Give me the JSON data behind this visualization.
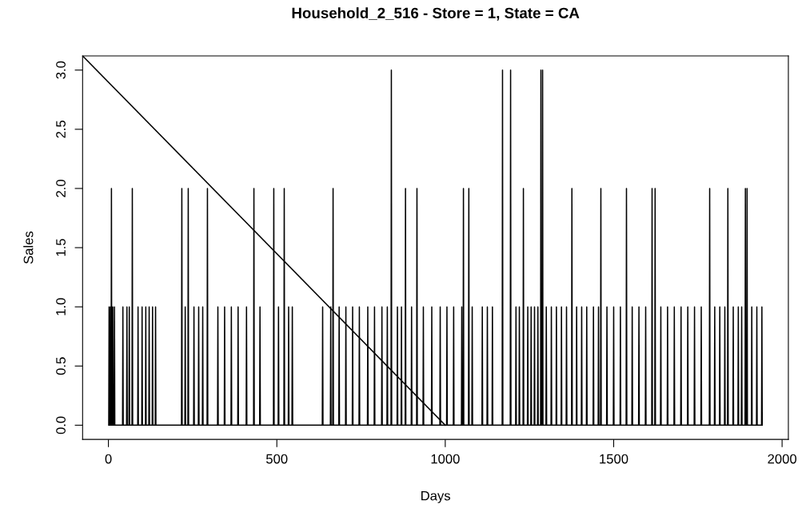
{
  "chart_data": {
    "type": "line",
    "title": "Household_2_516 - Store = 1, State = CA",
    "xlabel": "Days",
    "ylabel": "Sales",
    "xlim": [
      -76.6,
      2018.6
    ],
    "ylim": [
      -0.12,
      3.12
    ],
    "xticks": [
      0,
      500,
      1000,
      1500,
      2000
    ],
    "yticks": [
      {
        "value": 0,
        "label": "0.0"
      },
      {
        "value": 0.5,
        "label": "0.5"
      },
      {
        "value": 1,
        "label": "1.0"
      },
      {
        "value": 1.5,
        "label": "1.5"
      },
      {
        "value": 2,
        "label": "2.0"
      },
      {
        "value": 2.5,
        "label": "2.5"
      },
      {
        "value": 3,
        "label": "3.0"
      }
    ],
    "grid": false,
    "legend": false,
    "series": [
      {
        "color": "#000000",
        "x": [
          1,
          2,
          3,
          5,
          6,
          7,
          8,
          9,
          10,
          12,
          13,
          14,
          17,
          18,
          19,
          42,
          43,
          44,
          54,
          55,
          56,
          61,
          62,
          63,
          70,
          71,
          72,
          87,
          88,
          89,
          99,
          100,
          101,
          110,
          111,
          112,
          120,
          121,
          122,
          130,
          131,
          132,
          139,
          140,
          141,
          217,
          218,
          219,
          227,
          228,
          229,
          236,
          237,
          238,
          253,
          254,
          255,
          267,
          268,
          269,
          279,
          280,
          281,
          293,
          294,
          295,
          324,
          325,
          326,
          344,
          345,
          346,
          364,
          365,
          366,
          384,
          385,
          386,
          409,
          410,
          411,
          431,
          432,
          433,
          449,
          450,
          451,
          490,
          491,
          492,
          504,
          505,
          506,
          521,
          522,
          523,
          534,
          535,
          536,
          545,
          546,
          547,
          635,
          636,
          637,
          659,
          660,
          661,
          666,
          667,
          668,
          684,
          685,
          686,
          704,
          705,
          706,
          724,
          725,
          726,
          744,
          745,
          746,
          769,
          770,
          771,
          789,
          790,
          791,
          811,
          812,
          813,
          827,
          828,
          829,
          839,
          840,
          841,
          857,
          858,
          859,
          869,
          870,
          871,
          881,
          882,
          883,
          899,
          900,
          901,
          915,
          916,
          917,
          934,
          935,
          936,
          959,
          960,
          961,
          984,
          985,
          986,
          1004,
          1005,
          1006,
          1024,
          1025,
          1026,
          1048,
          1049,
          1050,
          1053,
          1054,
          1055,
          1069,
          1070,
          1071,
          1079,
          1080,
          1081,
          1109,
          1110,
          1111,
          1124,
          1125,
          1126,
          1139,
          1140,
          1141,
          1169,
          1170,
          1171,
          1193,
          1194,
          1195,
          1209,
          1210,
          1211,
          1219,
          1220,
          1221,
          1231,
          1232,
          1233,
          1244,
          1245,
          1246,
          1254,
          1255,
          1256,
          1264,
          1265,
          1266,
          1274,
          1275,
          1276,
          1283,
          1284,
          1285,
          1288,
          1289,
          1290,
          1299,
          1300,
          1301,
          1314,
          1315,
          1316,
          1329,
          1330,
          1331,
          1344,
          1345,
          1346,
          1359,
          1360,
          1361,
          1375,
          1376,
          1377,
          1389,
          1390,
          1391,
          1404,
          1405,
          1406,
          1419,
          1420,
          1421,
          1439,
          1440,
          1441,
          1454,
          1455,
          1456,
          1461,
          1462,
          1463,
          1479,
          1480,
          1481,
          1499,
          1500,
          1501,
          1519,
          1520,
          1521,
          1537,
          1538,
          1539,
          1554,
          1555,
          1556,
          1574,
          1575,
          1576,
          1594,
          1595,
          1596,
          1613,
          1614,
          1615,
          1622,
          1623,
          1624,
          1639,
          1640,
          1641,
          1659,
          1660,
          1661,
          1679,
          1680,
          1681,
          1699,
          1700,
          1701,
          1719,
          1720,
          1721,
          1739,
          1740,
          1741,
          1759,
          1760,
          1761,
          1784,
          1785,
          1786,
          1799,
          1800,
          1801,
          1814,
          1815,
          1816,
          1829,
          1830,
          1831,
          1838,
          1839,
          1840,
          1854,
          1855,
          1856,
          1869,
          1870,
          1871,
          1879,
          1880,
          1881,
          1890,
          1891,
          1892,
          1895,
          1896,
          1897,
          1909,
          1910,
          1911,
          1924,
          1925,
          1926,
          1939,
          1940,
          1941
        ],
        "values": [
          0,
          1,
          0,
          0,
          1,
          0,
          0,
          2,
          0,
          0,
          1,
          0,
          0,
          1,
          0,
          0,
          1,
          0,
          0,
          1,
          0,
          0,
          1,
          0,
          0,
          2,
          0,
          0,
          1,
          0,
          0,
          1,
          0,
          0,
          1,
          0,
          0,
          1,
          0,
          0,
          1,
          0,
          0,
          1,
          0,
          0,
          2,
          0,
          0,
          1,
          0,
          0,
          2,
          0,
          0,
          1,
          0,
          0,
          1,
          0,
          0,
          1,
          0,
          0,
          2,
          0,
          0,
          1,
          0,
          0,
          1,
          0,
          0,
          1,
          0,
          0,
          1,
          0,
          0,
          1,
          0,
          0,
          2,
          0,
          0,
          1,
          0,
          0,
          2,
          0,
          0,
          1,
          0,
          0,
          2,
          0,
          0,
          1,
          0,
          0,
          1,
          0,
          0,
          1,
          0,
          0,
          1,
          0,
          0,
          2,
          0,
          0,
          1,
          0,
          0,
          1,
          0,
          0,
          1,
          0,
          0,
          1,
          0,
          0,
          1,
          0,
          0,
          1,
          0,
          0,
          1,
          0,
          0,
          1,
          0,
          0,
          3,
          0,
          0,
          1,
          0,
          0,
          1,
          0,
          0,
          2,
          0,
          0,
          1,
          0,
          0,
          2,
          0,
          0,
          1,
          0,
          0,
          1,
          0,
          0,
          1,
          0,
          0,
          1,
          0,
          0,
          1,
          0,
          0,
          1,
          0,
          0,
          2,
          0,
          0,
          2,
          0,
          0,
          1,
          0,
          0,
          1,
          0,
          0,
          1,
          0,
          0,
          1,
          0,
          0,
          3,
          0,
          0,
          3,
          0,
          0,
          1,
          0,
          0,
          1,
          0,
          0,
          2,
          0,
          0,
          1,
          0,
          0,
          1,
          0,
          0,
          1,
          0,
          0,
          1,
          0,
          0,
          3,
          0,
          0,
          3,
          0,
          0,
          1,
          0,
          0,
          1,
          0,
          0,
          1,
          0,
          0,
          1,
          0,
          0,
          1,
          0,
          0,
          2,
          0,
          0,
          1,
          0,
          0,
          1,
          0,
          0,
          1,
          0,
          0,
          1,
          0,
          0,
          1,
          0,
          0,
          2,
          0,
          0,
          1,
          0,
          0,
          1,
          0,
          0,
          1,
          0,
          0,
          2,
          0,
          0,
          1,
          0,
          0,
          1,
          0,
          0,
          1,
          0,
          0,
          2,
          0,
          0,
          2,
          0,
          0,
          1,
          0,
          0,
          1,
          0,
          0,
          1,
          0,
          0,
          1,
          0,
          0,
          1,
          0,
          0,
          1,
          0,
          0,
          1,
          0,
          0,
          2,
          0,
          0,
          1,
          0,
          0,
          1,
          0,
          0,
          1,
          0,
          0,
          2,
          0,
          0,
          1,
          0,
          0,
          1,
          0,
          0,
          1,
          0,
          0,
          2,
          0,
          0,
          2,
          0,
          0,
          1,
          0,
          0,
          1,
          0,
          0,
          1,
          0
        ]
      },
      {
        "color": "#000000",
        "x": [
          -76.6,
          1000
        ],
        "values": [
          3.12,
          0
        ]
      }
    ]
  }
}
